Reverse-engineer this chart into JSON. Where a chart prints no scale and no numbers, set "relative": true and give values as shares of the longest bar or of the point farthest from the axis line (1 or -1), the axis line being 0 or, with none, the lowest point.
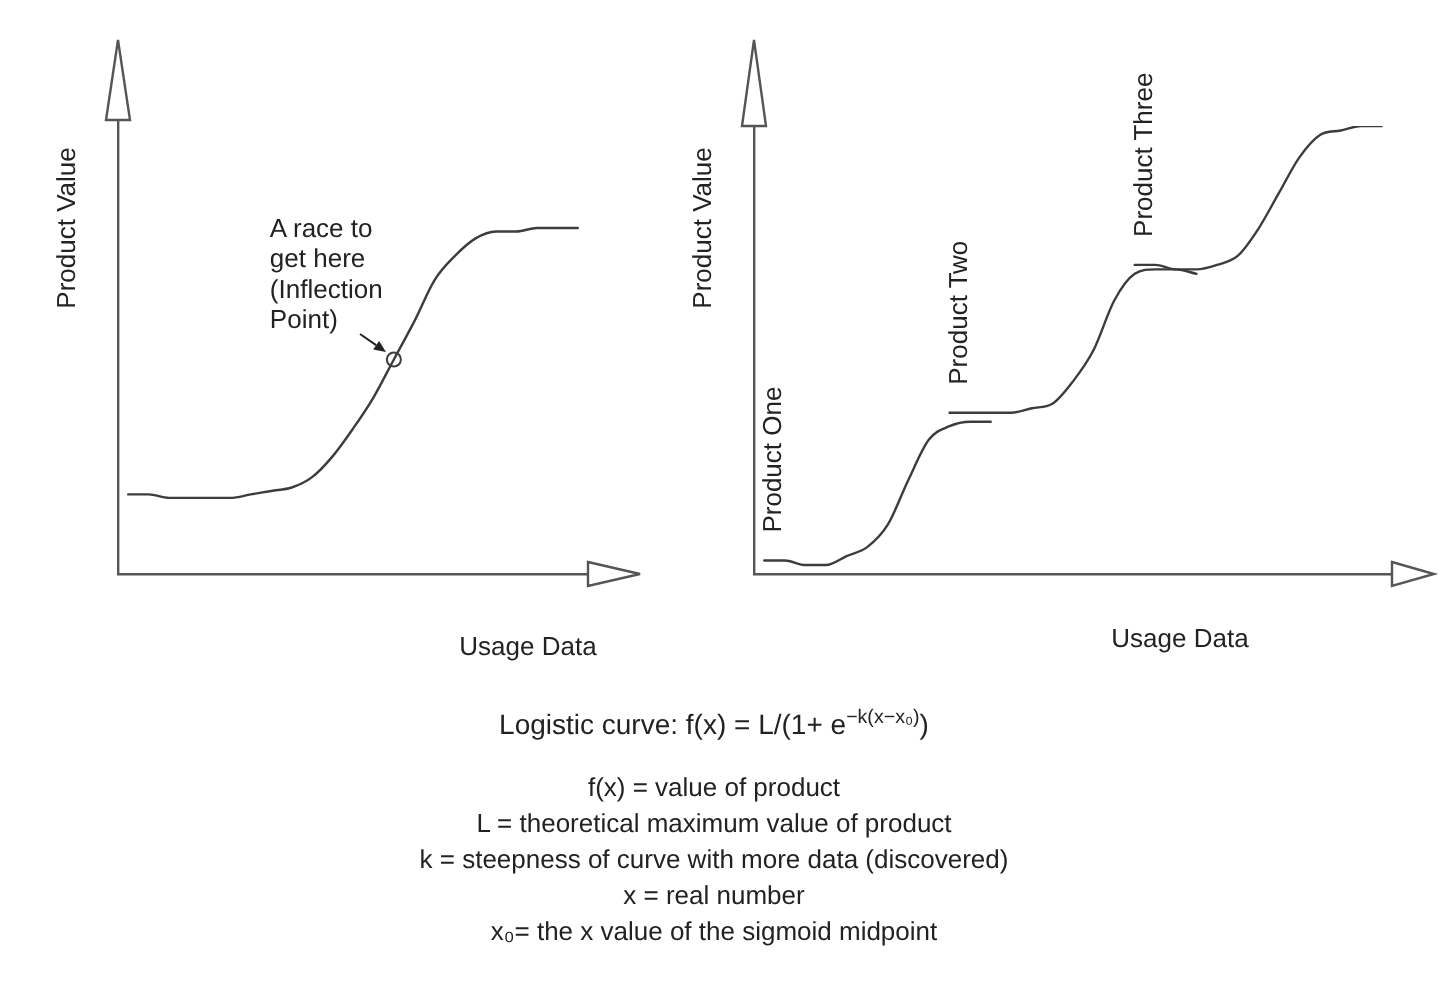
{
  "chart_data": [
    {
      "type": "line",
      "xlabel": "Usage Data",
      "ylabel": "Product Value",
      "relative": true,
      "marker": "none",
      "categories": [
        null,
        null,
        null,
        null,
        null,
        null,
        null,
        null,
        null,
        null,
        null,
        null,
        null,
        null,
        null,
        null,
        null,
        null,
        null,
        null,
        null,
        null,
        null
      ],
      "series": [
        {
          "color": "#3c3c3c",
          "values": [
            0.23,
            0.23,
            0.22,
            0.22,
            0.22,
            0.22,
            0.23,
            0.24,
            0.25,
            0.28,
            0.34,
            0.42,
            0.51,
            0.62,
            0.73,
            0.85,
            0.92,
            0.97,
            0.99,
            0.99,
            1,
            1,
            1
          ]
        },
        {
          "marker": "circle",
          "color": "#3c3c3c",
          "values": [
            null,
            null,
            null,
            null,
            null,
            null,
            null,
            null,
            null,
            null,
            null,
            null,
            null,
            0.62,
            null,
            null,
            null,
            null,
            null,
            null,
            null,
            null,
            null
          ]
        }
      ],
      "annotations": [
        "A race to get here (Inflection Point)"
      ]
    },
    {
      "type": "line",
      "xlabel": "Usage Data",
      "ylabel": "Product Value",
      "relative": true,
      "marker": "none",
      "categories": [
        null,
        null,
        null,
        null,
        null,
        null,
        null,
        null,
        null,
        null,
        null,
        null,
        null,
        null,
        null,
        null,
        null,
        null,
        null,
        null,
        null,
        null,
        null,
        null,
        null,
        null,
        null,
        null,
        null,
        null,
        null
      ],
      "series": [
        {
          "name": "Product One",
          "color": "#3c3c3c",
          "values": [
            0.03,
            0.03,
            0.02,
            0.02,
            0.04,
            0.06,
            0.11,
            0.21,
            0.3,
            0.33,
            0.34,
            0.34,
            null,
            null,
            null,
            null,
            null,
            null,
            null,
            null,
            null,
            null,
            null,
            null,
            null,
            null,
            null,
            null,
            null,
            null,
            null
          ]
        },
        {
          "name": "Product Two",
          "color": "#3c3c3c",
          "values": [
            null,
            null,
            null,
            null,
            null,
            null,
            null,
            null,
            null,
            0.36,
            0.36,
            0.36,
            0.36,
            0.37,
            0.38,
            0.43,
            0.5,
            0.61,
            0.67,
            0.68,
            0.68,
            0.67,
            null,
            null,
            null,
            null,
            null,
            null,
            null,
            null,
            null
          ]
        },
        {
          "name": "Product Three",
          "color": "#3c3c3c",
          "values": [
            null,
            null,
            null,
            null,
            null,
            null,
            null,
            null,
            null,
            null,
            null,
            null,
            null,
            null,
            null,
            null,
            null,
            null,
            0.69,
            0.69,
            0.68,
            0.68,
            0.69,
            0.71,
            0.77,
            0.85,
            0.93,
            0.98,
            0.99,
            1,
            1
          ]
        }
      ]
    },
    {
      "type": "other",
      "annotations": [
        "Logistic curve: f(x) = L/(1+ e$^{−k(x−x₀)}$)",
        "f(x) = value of product",
        "L = theoretical maximum value of product",
        "k  = steepness of curve with more data (discovered)",
        "x = real number",
        "x₀= the x value of the sigmoid midpoint"
      ]
    }
  ]
}
